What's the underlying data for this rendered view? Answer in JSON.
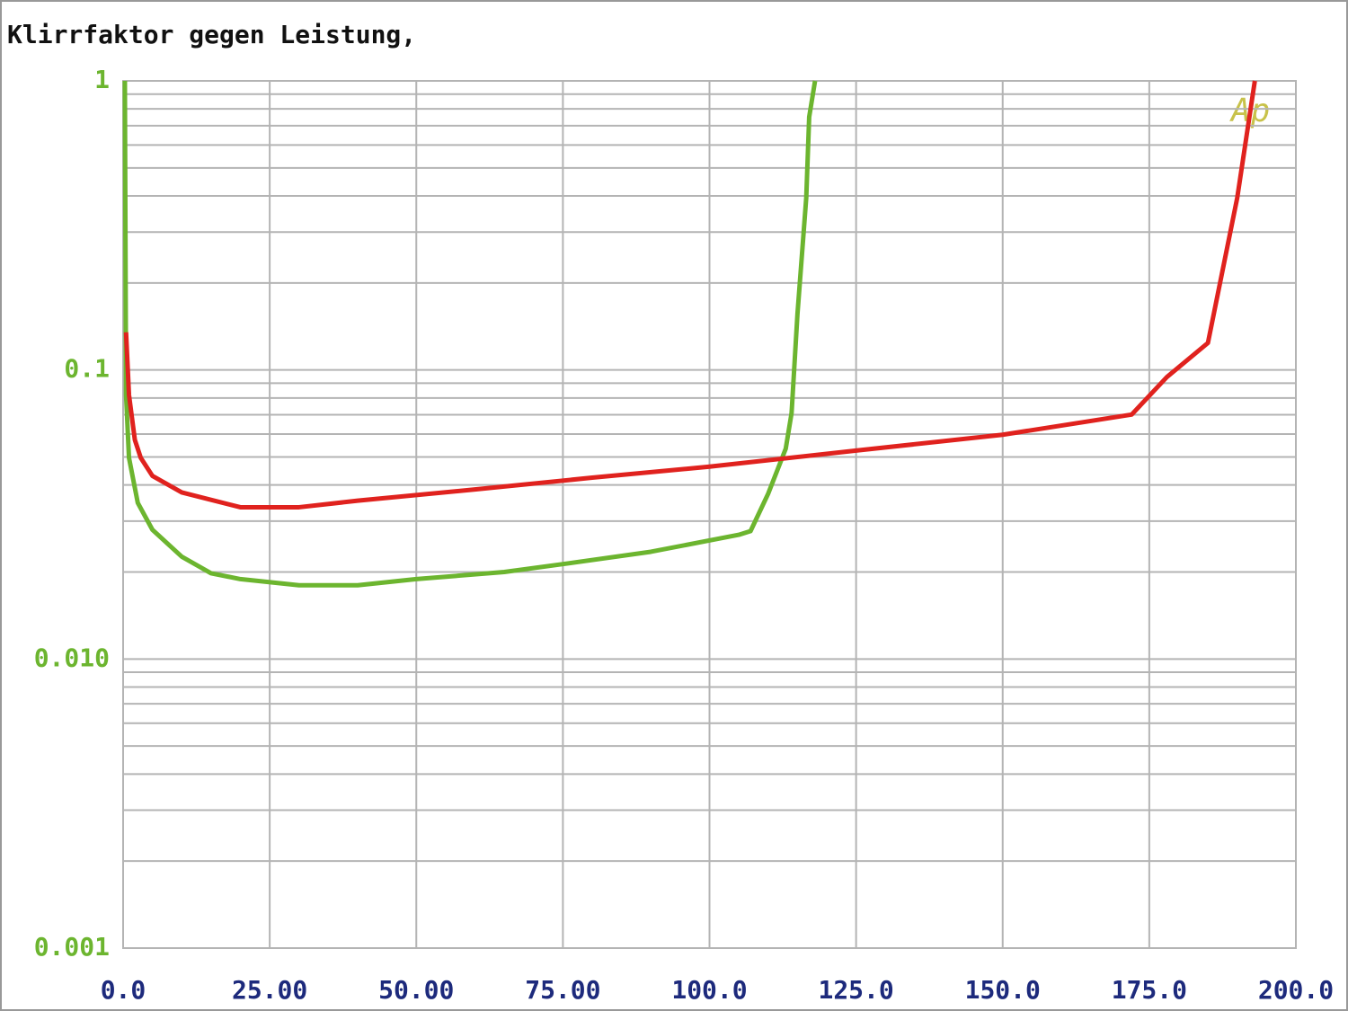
{
  "chart_data": {
    "type": "line",
    "title": "Klirrfaktor gegen Leistung,",
    "annotations": [
      "Ap"
    ],
    "log_y": true,
    "grid": true,
    "xlim": [
      0,
      200
    ],
    "xticks": [
      {
        "value": 0,
        "label": "0.0"
      },
      {
        "value": 25,
        "label": "25.00"
      },
      {
        "value": 50,
        "label": "50.00"
      },
      {
        "value": 75,
        "label": "75.00"
      },
      {
        "value": 100,
        "label": "100.0"
      },
      {
        "value": 125,
        "label": "125.0"
      },
      {
        "value": 150,
        "label": "150.0"
      },
      {
        "value": 175,
        "label": "175.0"
      },
      {
        "value": 200,
        "label": "200.0"
      }
    ],
    "ylim": [
      0.001,
      1
    ],
    "yticks": [
      1,
      0.1,
      {
        "value": 0.01,
        "label": "0.010"
      },
      0.001
    ],
    "series": [
      {
        "color": "#6cb52f",
        "x": [
          0.3,
          0.5,
          1,
          2.5,
          5,
          10,
          15,
          20,
          30,
          40,
          50,
          65,
          75,
          90,
          105,
          107,
          110,
          113,
          114,
          115,
          116.5,
          117,
          118
        ],
        "values": [
          1,
          0.082,
          0.0497,
          0.0347,
          0.028,
          0.0226,
          0.0198,
          0.0189,
          0.018,
          0.018,
          0.0189,
          0.02,
          0.0213,
          0.0235,
          0.0269,
          0.0277,
          0.0373,
          0.0534,
          0.071,
          0.156,
          0.394,
          0.75,
          1
        ]
      },
      {
        "color": "#e0221e",
        "x": [
          0.5,
          1,
          2,
          3,
          5,
          10,
          20,
          30,
          40,
          60,
          80,
          100,
          125,
          150,
          172,
          178,
          185,
          190,
          193
        ],
        "values": [
          0.135,
          0.082,
          0.0573,
          0.0497,
          0.043,
          0.0377,
          0.0335,
          0.0335,
          0.0353,
          0.0386,
          0.0424,
          0.0463,
          0.0526,
          0.0597,
          0.0701,
          0.0945,
          0.124,
          0.394,
          1
        ]
      }
    ]
  }
}
